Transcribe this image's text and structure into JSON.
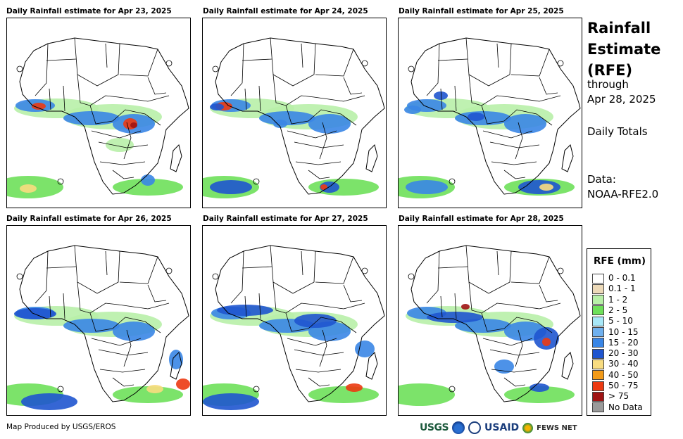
{
  "panels": [
    {
      "title": "Daily Rainfall estimate for Apr 23, 2025"
    },
    {
      "title": "Daily Rainfall estimate for Apr 24, 2025"
    },
    {
      "title": "Daily Rainfall estimate for Apr 25, 2025"
    },
    {
      "title": "Daily Rainfall estimate for Apr 26, 2025"
    },
    {
      "title": "Daily Rainfall estimate for Apr 27, 2025"
    },
    {
      "title": "Daily Rainfall estimate for Apr 28, 2025"
    }
  ],
  "side": {
    "title_lines": [
      "Rainfall",
      "Estimate",
      "(RFE)"
    ],
    "through": "through",
    "date": "Apr 28, 2025",
    "period": "Daily Totals",
    "data_label": "Data:",
    "data_source": "NOAA-RFE2.0"
  },
  "legend": {
    "title": "RFE (mm)",
    "items": [
      {
        "label": "0 - 0.1",
        "color": "#ffffff"
      },
      {
        "label": "0.1 - 1",
        "color": "#ecd9b8"
      },
      {
        "label": "1 - 2",
        "color": "#b8f0a8"
      },
      {
        "label": "2 - 5",
        "color": "#6ee05a"
      },
      {
        "label": "5 - 10",
        "color": "#a8e8f8"
      },
      {
        "label": "10 - 15",
        "color": "#6fb0ee"
      },
      {
        "label": "15 - 20",
        "color": "#3a86e6"
      },
      {
        "label": "20 - 30",
        "color": "#1f55cf"
      },
      {
        "label": "30 - 40",
        "color": "#f8dc80"
      },
      {
        "label": "40 - 50",
        "color": "#f29a18"
      },
      {
        "label": "50 - 75",
        "color": "#ec3a12"
      },
      {
        "label": "> 75",
        "color": "#a01414"
      },
      {
        "label": "No Data",
        "color": "#9a9a9a"
      }
    ]
  },
  "footer": {
    "credit": "Map Produced by USGS/EROS",
    "logos": [
      "USGS",
      "NOAA",
      "USAID",
      "FEWS NET"
    ]
  }
}
